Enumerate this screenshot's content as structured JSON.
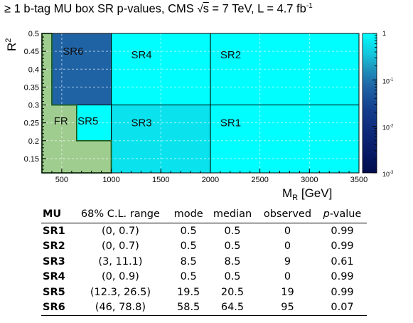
{
  "chart_data": {
    "type": "heatmap",
    "title": {
      "prefix": "≥ 1 b-tag MU box SR p-values, CMS ",
      "sqrt_symbol": "√",
      "sqrt_var": "s",
      "middle": " = 7 TeV, L = 4.7 fb",
      "exponent": "-1"
    },
    "xlabel": {
      "main": "M",
      "sub": "R",
      "unit": " [GeV]"
    },
    "ylabel": {
      "main": "R",
      "sup": "2"
    },
    "xlim": [
      300,
      3500
    ],
    "ylim": [
      0.11,
      0.5
    ],
    "xticks": [
      500,
      1000,
      1500,
      2000,
      2500,
      3000,
      3500
    ],
    "yticks": [
      0.15,
      0.2,
      0.25,
      0.3,
      0.35,
      0.4,
      0.45,
      0.5
    ],
    "grid": true,
    "colorscale": {
      "type": "log",
      "range": [
        0.001,
        1
      ],
      "ticks": [
        "1",
        "10",
        "10",
        "10"
      ],
      "tick_exponents": [
        "",
        "-1",
        "-2",
        "-3"
      ],
      "tick_values": [
        1,
        0.1,
        0.01,
        0.001
      ]
    },
    "regions": [
      {
        "name": "SR1",
        "label": "SR1",
        "pvalue": 0.99,
        "x": [
          2000,
          3500
        ],
        "y": [
          0.11,
          0.3
        ]
      },
      {
        "name": "SR2",
        "label": "SR2",
        "pvalue": 0.99,
        "x": [
          2000,
          3500
        ],
        "y": [
          0.3,
          0.5
        ]
      },
      {
        "name": "SR3",
        "label": "SR3",
        "pvalue": 0.61,
        "x": [
          1000,
          2000
        ],
        "y": [
          0.11,
          0.3
        ]
      },
      {
        "name": "SR4",
        "label": "SR4",
        "pvalue": 0.99,
        "x": [
          1000,
          2000
        ],
        "y": [
          0.3,
          0.5
        ]
      },
      {
        "name": "SR5",
        "label": "SR5",
        "pvalue": 0.99,
        "x": [
          650,
          1000
        ],
        "y": [
          0.2,
          0.3
        ]
      },
      {
        "name": "SR6",
        "label": "SR6",
        "pvalue": 0.07,
        "x": [
          400,
          1000
        ],
        "y": [
          0.3,
          0.5
        ]
      }
    ],
    "fr_region": {
      "label": "FR",
      "color": "#9fcc8f",
      "polygon": [
        [
          300,
          0.11
        ],
        [
          300,
          0.5
        ],
        [
          400,
          0.5
        ],
        [
          400,
          0.3
        ],
        [
          650,
          0.3
        ],
        [
          650,
          0.2
        ],
        [
          1000,
          0.2
        ],
        [
          1000,
          0.11
        ]
      ]
    }
  },
  "table": {
    "headers": [
      "MU",
      "68% C.L. range",
      "mode",
      "median",
      "observed",
      "p",
      "-value"
    ],
    "rows": [
      [
        "SR1",
        "(0, 0.7)",
        "0.5",
        "0.5",
        "0",
        "0.99"
      ],
      [
        "SR2",
        "(0, 0.7)",
        "0.5",
        "0.5",
        "0",
        "0.99"
      ],
      [
        "SR3",
        "(3, 11.1)",
        "8.5",
        "8.5",
        "9",
        "0.61"
      ],
      [
        "SR4",
        "(0, 0.9)",
        "0.5",
        "0.5",
        "0",
        "0.99"
      ],
      [
        "SR5",
        "(12.3, 26.5)",
        "19.5",
        "20.5",
        "19",
        "0.99"
      ],
      [
        "SR6",
        "(46, 78.8)",
        "58.5",
        "64.5",
        "95",
        "0.07"
      ]
    ]
  }
}
